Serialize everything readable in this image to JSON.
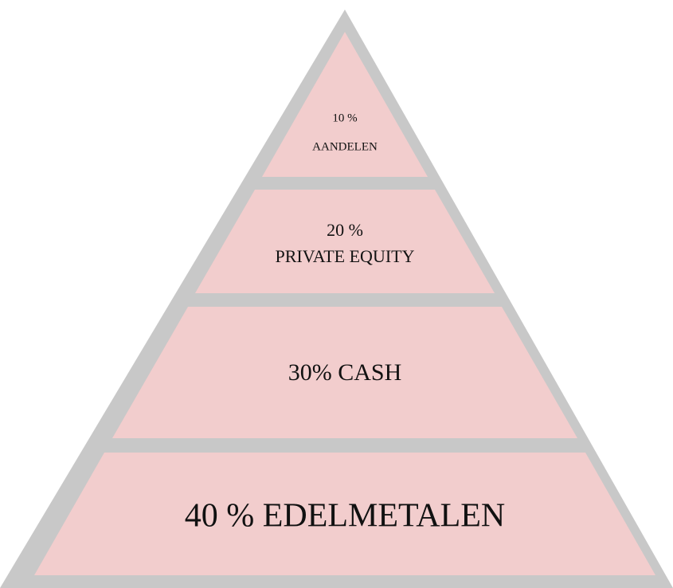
{
  "levels": [
    {
      "lines": [
        "10 %",
        "AANDELEN"
      ]
    },
    {
      "lines": [
        "20 %",
        "PRIVATE EQUITY"
      ]
    },
    {
      "lines": [
        "30% CASH"
      ]
    },
    {
      "lines": [
        "40 % EDELMETALEN"
      ]
    }
  ]
}
